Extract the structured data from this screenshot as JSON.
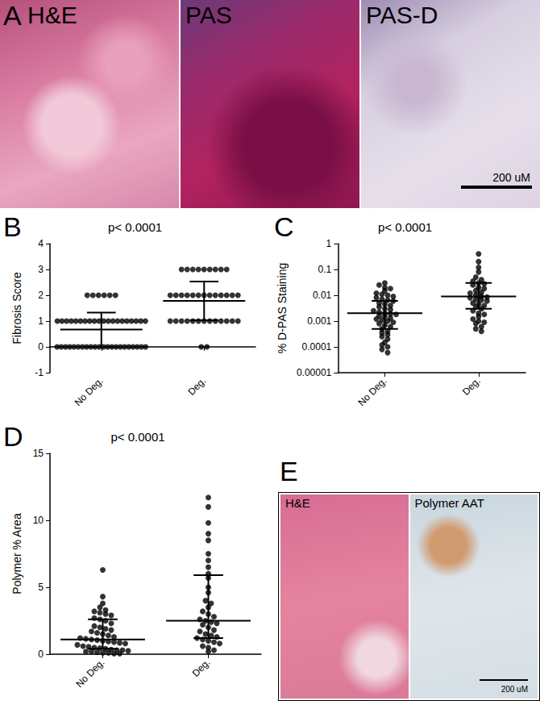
{
  "figure_panels": [
    {
      "label": "A",
      "images": [
        "H&E",
        "PAS",
        "PAS-D"
      ],
      "scale_bar": "200 uM"
    },
    {
      "label": "B"
    },
    {
      "label": "C"
    },
    {
      "label": "D"
    },
    {
      "label": "E",
      "images": [
        "H&E",
        "Polymer AAT"
      ],
      "scale_bar": "200 uM"
    }
  ],
  "chart_data": [
    {
      "type": "scatter",
      "categories": [
        "No Deg.",
        "Deg."
      ],
      "ylabel": "Fibrosis Score",
      "annotation": "p< 0.0001",
      "ylim": [
        -1,
        4
      ],
      "yticks": [
        -1,
        0,
        1,
        2,
        3,
        4
      ],
      "color": "#000000",
      "grid": false,
      "values": [
        [
          0,
          0,
          0,
          0,
          0,
          0,
          0,
          0,
          0,
          0,
          0,
          0,
          0,
          0,
          0,
          0,
          0,
          0,
          0,
          0,
          0,
          0,
          1,
          1,
          1,
          1,
          1,
          1,
          1,
          1,
          1,
          1,
          1,
          1,
          1,
          1,
          1,
          1,
          1,
          1,
          1,
          1,
          2,
          2,
          2,
          2,
          2,
          2
        ],
        [
          0,
          0,
          1,
          1,
          1,
          1,
          1,
          1,
          1,
          1,
          1,
          1,
          1,
          1,
          1,
          2,
          2,
          2,
          2,
          2,
          2,
          2,
          2,
          2,
          2,
          2,
          2,
          2,
          3,
          3,
          3,
          3,
          3,
          3,
          3,
          3,
          3
        ]
      ],
      "summary": [
        {
          "center": 0.67,
          "low": 0,
          "high": 1.33
        },
        {
          "center": 1.78,
          "low": 1.03,
          "high": 2.53
        }
      ]
    },
    {
      "type": "scatter",
      "categories": [
        "No Deg.",
        "Deg."
      ],
      "ylabel": "% D-PAS Staining",
      "annotation": "p< 0.0001",
      "log": "y",
      "ylim": [
        1e-05,
        1
      ],
      "yticks": [
        1e-05,
        0.0001,
        0.001,
        0.01,
        0.1,
        1
      ],
      "color": "#000000",
      "grid": false,
      "values": [
        [
          0.03,
          0.025,
          0.02,
          0.018,
          0.015,
          0.012,
          0.011,
          0.01,
          0.009,
          0.008,
          0.007,
          0.0065,
          0.006,
          0.005,
          0.0045,
          0.004,
          0.0035,
          0.003,
          0.0028,
          0.0025,
          0.0022,
          0.002,
          0.0019,
          0.0018,
          0.0016,
          0.0015,
          0.0013,
          0.0012,
          0.0011,
          0.001,
          0.0009,
          0.0008,
          0.0007,
          0.0006,
          0.0005,
          0.0004,
          0.00035,
          0.0003,
          0.00025,
          0.0002,
          0.00015,
          0.00012,
          0.0001,
          8e-05,
          6e-05
        ],
        [
          0.4,
          0.2,
          0.12,
          0.08,
          0.05,
          0.04,
          0.035,
          0.03,
          0.028,
          0.025,
          0.02,
          0.018,
          0.015,
          0.013,
          0.012,
          0.01,
          0.009,
          0.0085,
          0.008,
          0.007,
          0.0065,
          0.006,
          0.005,
          0.0045,
          0.004,
          0.0035,
          0.003,
          0.0025,
          0.002,
          0.0018,
          0.0015,
          0.0012,
          0.001,
          0.0009,
          0.0008,
          0.0006,
          0.0005,
          0.0004
        ]
      ],
      "summary": [
        {
          "center": 0.002,
          "low": 0.0005,
          "high": 0.006
        },
        {
          "center": 0.009,
          "low": 0.003,
          "high": 0.03
        }
      ]
    },
    {
      "type": "scatter",
      "categories": [
        "No Deg.",
        "Deg."
      ],
      "ylabel": "Polymer % Area",
      "annotation": "p< 0.0001",
      "ylim": [
        0,
        15
      ],
      "yticks": [
        0,
        5,
        10,
        15
      ],
      "color": "#000000",
      "grid": false,
      "values": [
        [
          6.3,
          4.3,
          3.8,
          3.5,
          3.3,
          3.2,
          3.1,
          3.0,
          2.9,
          2.7,
          2.6,
          2.5,
          2.3,
          2.1,
          2.0,
          1.9,
          1.8,
          1.7,
          1.6,
          1.5,
          1.4,
          1.3,
          1.2,
          1.15,
          1.1,
          1.05,
          1.0,
          0.95,
          0.9,
          0.85,
          0.8,
          0.7,
          0.6,
          0.55,
          0.5,
          0.45,
          0.4,
          0.35,
          0.3,
          0.3,
          0.25,
          0.2,
          0.2,
          0.15,
          0.1,
          0.1,
          0.05,
          0.05
        ],
        [
          11.7,
          11.0,
          9.8,
          9.0,
          8.5,
          7.5,
          7.0,
          6.5,
          6.0,
          5.7,
          5.0,
          4.6,
          4.0,
          3.8,
          3.5,
          3.2,
          3.0,
          2.8,
          2.6,
          2.5,
          2.4,
          2.3,
          2.2,
          2.0,
          1.8,
          1.7,
          1.5,
          1.4,
          1.3,
          1.2,
          1.1,
          1.0,
          0.9,
          0.8,
          0.6,
          0.5,
          0.3,
          0.2
        ]
      ],
      "summary": [
        {
          "center": 1.1,
          "low": 0.4,
          "high": 2.6
        },
        {
          "center": 2.5,
          "low": 1.2,
          "high": 5.9
        }
      ]
    }
  ]
}
